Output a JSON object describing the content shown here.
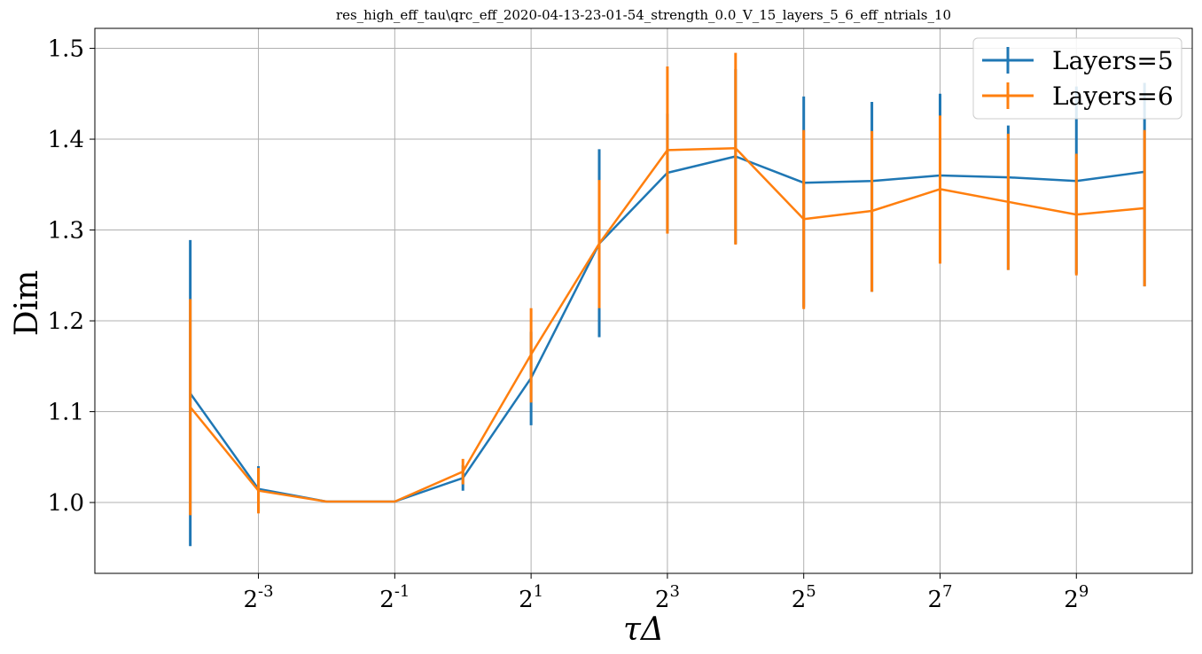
{
  "chart_data": {
    "type": "line",
    "title": "res_high_eff_tau\\qrc_eff_2020-04-13-23-01-54_strength_0.0_V_15_layers_5_6_eff_ntrials_10",
    "xlabel": "τΔ",
    "ylabel": "Dim",
    "x_scale": "log2",
    "x_exponents": [
      -4,
      -3,
      -2,
      -1,
      0,
      1,
      2,
      3,
      4,
      5,
      6,
      7,
      8,
      9,
      10
    ],
    "xticks": [
      {
        "base": "2",
        "exp": "-3",
        "value": -3
      },
      {
        "base": "2",
        "exp": "-1",
        "value": -1
      },
      {
        "base": "2",
        "exp": "1",
        "value": 1
      },
      {
        "base": "2",
        "exp": "3",
        "value": 3
      },
      {
        "base": "2",
        "exp": "5",
        "value": 5
      },
      {
        "base": "2",
        "exp": "7",
        "value": 7
      },
      {
        "base": "2",
        "exp": "9",
        "value": 9
      }
    ],
    "yticks": [
      "1.0",
      "1.1",
      "1.2",
      "1.3",
      "1.4",
      "1.5"
    ],
    "xlim": [
      -5.4,
      10.7
    ],
    "ylim": [
      0.922,
      1.522
    ],
    "grid": true,
    "legend_position": "top-right",
    "series": [
      {
        "name": "Layers=5",
        "color": "#1f77b4",
        "values": [
          1.12,
          1.015,
          1.001,
          1.001,
          1.027,
          1.137,
          1.285,
          1.363,
          1.381,
          1.352,
          1.354,
          1.36,
          1.358,
          1.354,
          1.364
        ],
        "lower": [
          0.952,
          0.99,
          1.001,
          1.001,
          1.013,
          1.085,
          1.182,
          1.297,
          1.285,
          1.215,
          1.232,
          1.264,
          1.256,
          1.252,
          1.238
        ],
        "upper": [
          1.289,
          1.04,
          1.001,
          1.001,
          1.041,
          1.188,
          1.389,
          1.428,
          1.477,
          1.447,
          1.441,
          1.45,
          1.415,
          1.458,
          1.462
        ]
      },
      {
        "name": "Layers=6",
        "color": "#ff7f0e",
        "values": [
          1.105,
          1.013,
          1.001,
          1.001,
          1.034,
          1.163,
          1.285,
          1.388,
          1.39,
          1.312,
          1.321,
          1.345,
          1.331,
          1.317,
          1.324
        ],
        "lower": [
          0.986,
          0.988,
          1.001,
          1.001,
          1.02,
          1.11,
          1.214,
          1.296,
          1.284,
          1.213,
          1.232,
          1.263,
          1.256,
          1.25,
          1.238
        ],
        "upper": [
          1.224,
          1.038,
          1.001,
          1.001,
          1.048,
          1.214,
          1.355,
          1.48,
          1.495,
          1.41,
          1.409,
          1.426,
          1.406,
          1.384,
          1.41
        ]
      }
    ]
  }
}
